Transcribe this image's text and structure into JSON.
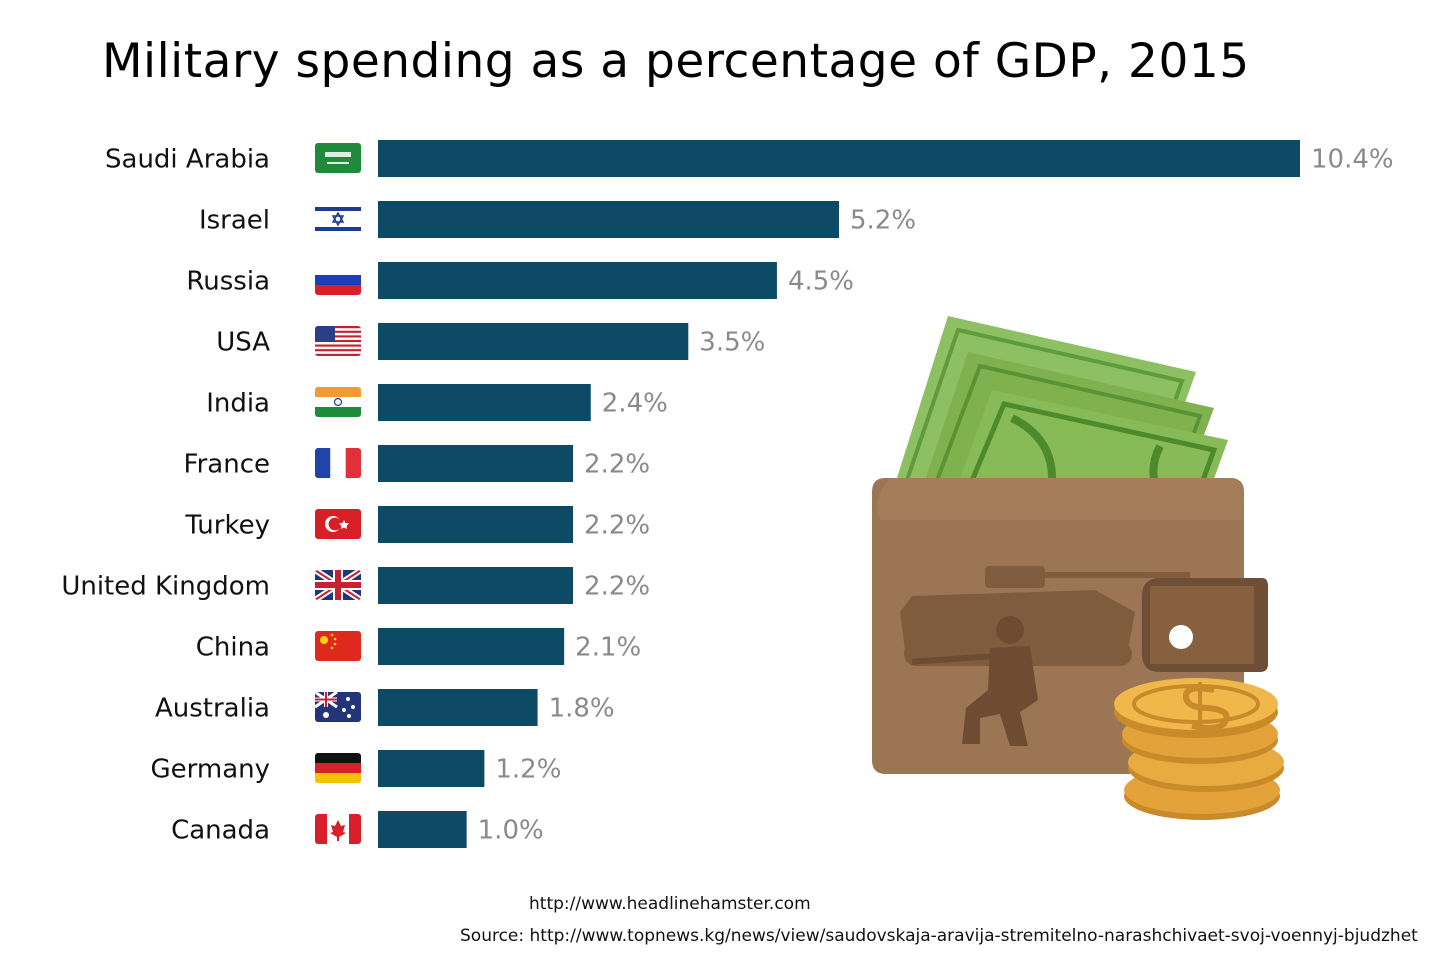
{
  "chart_data": {
    "type": "bar",
    "orientation": "horizontal",
    "title": "Military spending as a percentage of GDP, 2015",
    "xlabel": "",
    "ylabel": "",
    "unit": "%",
    "xlim": [
      0,
      10.4
    ],
    "grid": false,
    "categories": [
      "Saudi Arabia",
      "Israel",
      "Russia",
      "USA",
      "India",
      "France",
      "Turkey",
      "United Kingdom",
      "China",
      "Australia",
      "Germany",
      "Canada"
    ],
    "values": [
      10.4,
      5.2,
      4.5,
      3.5,
      2.4,
      2.2,
      2.2,
      2.2,
      2.1,
      1.8,
      1.2,
      1.0
    ],
    "value_labels": [
      "10.4%",
      "5.2%",
      "4.5%",
      "3.5%",
      "2.4%",
      "2.2%",
      "2.2%",
      "2.2%",
      "2.1%",
      "1.8%",
      "1.2%",
      "1.0%"
    ],
    "flags": [
      "saudi-arabia-flag-icon",
      "israel-flag-icon",
      "russia-flag-icon",
      "usa-flag-icon",
      "india-flag-icon",
      "france-flag-icon",
      "turkey-flag-icon",
      "united-kingdom-flag-icon",
      "china-flag-icon",
      "australia-flag-icon",
      "germany-flag-icon",
      "canada-flag-icon"
    ],
    "bar_color": "#0d4a66"
  },
  "illustration": {
    "icon": "wallet-with-money-and-coins-icon"
  },
  "footer": {
    "watermark": "http://www.headlinehamster.com",
    "source": "Source: http://www.topnews.kg/news/view/saudovskaja-aravija-stremitelno-narashchivaet-svoj-voennyj-bjudzhet"
  },
  "colors": {
    "bar": "#0d4a66",
    "value_label": "#8a8a8a",
    "wallet": "#9c7554",
    "money": "#7fb24f",
    "coin": "#e3a33a"
  }
}
